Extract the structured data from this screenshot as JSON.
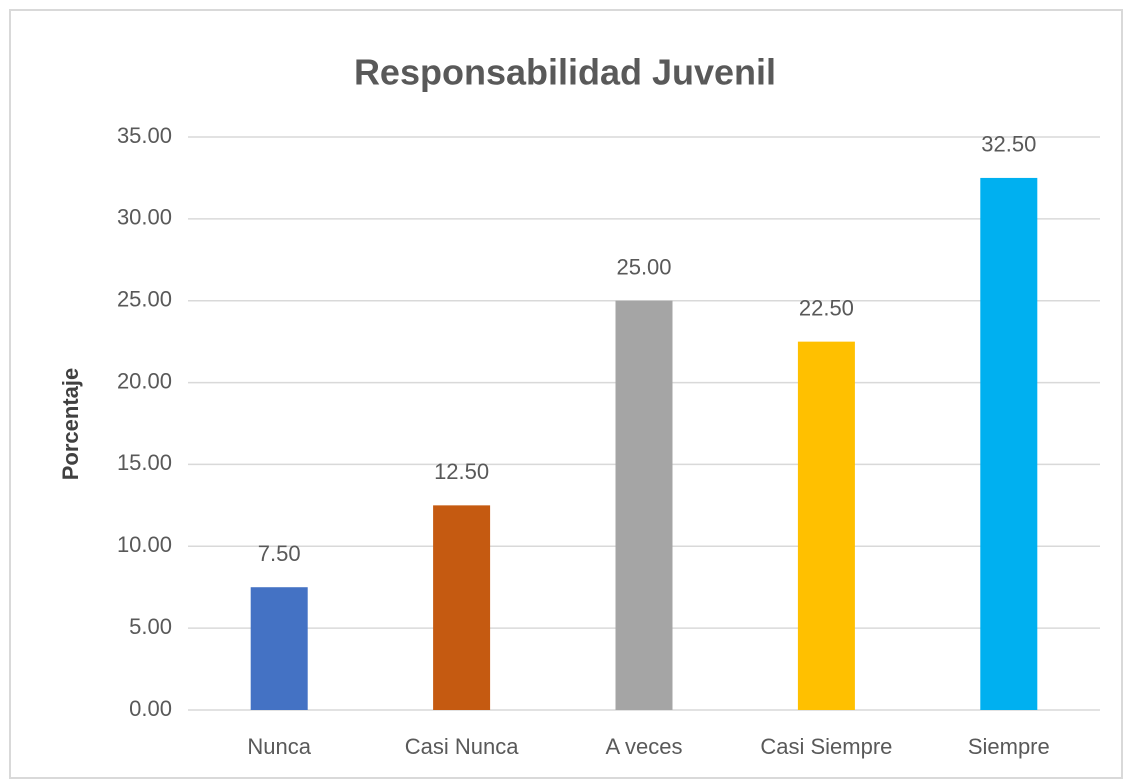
{
  "chart_data": {
    "type": "bar",
    "title": "Responsabilidad Juvenil",
    "y_label": "Porcentaje",
    "categories": [
      "Nunca",
      "Casi Nunca",
      "A veces",
      "Casi Siempre",
      "Siempre"
    ],
    "values": [
      7.5,
      12.5,
      25,
      22.5,
      32.5
    ],
    "value_labels": [
      "7.50",
      "12.50",
      "25.00",
      "22.50",
      "32.50"
    ],
    "colors": [
      "#4472c4",
      "#c55a11",
      "#a5a5a5",
      "#ffc000",
      "#00b0f0"
    ],
    "ylim": [
      0,
      35
    ],
    "yticks": [
      {
        "value": 0,
        "label": "0.00"
      },
      {
        "value": 5,
        "label": "5.00"
      },
      {
        "value": 10,
        "label": "10.00"
      },
      {
        "value": 15,
        "label": "15.00"
      },
      {
        "value": 20,
        "label": "20.00"
      },
      {
        "value": 25,
        "label": "25.00"
      },
      {
        "value": 30,
        "label": "30.00"
      },
      {
        "value": 35,
        "label": "35.00"
      }
    ],
    "grid": true
  }
}
